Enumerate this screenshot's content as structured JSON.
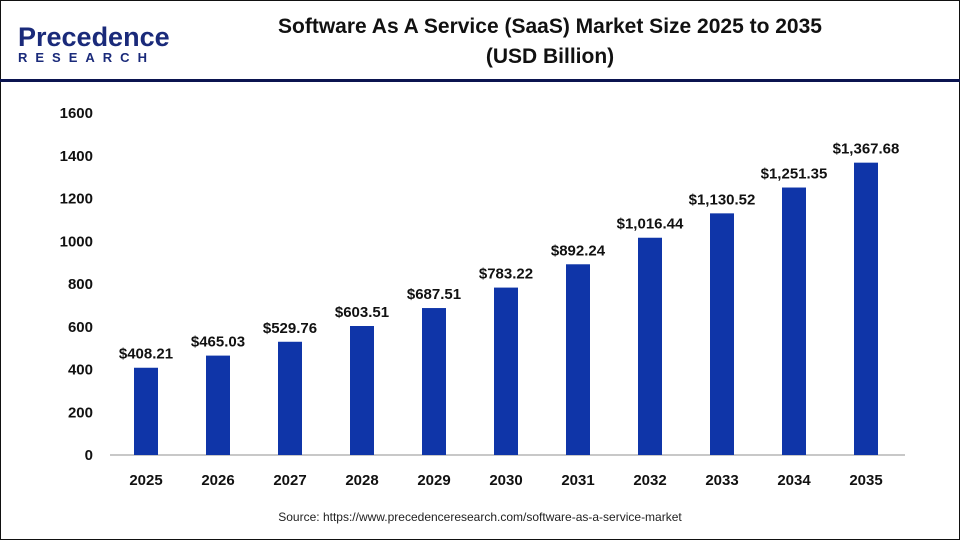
{
  "logo": {
    "line1": "Precedence",
    "line2": "RESEARCH"
  },
  "title": "Software As A Service (SaaS) Market Size 2025 to 2035",
  "subtitle": "(USD Billion)",
  "source": "Source: https://www.precedenceresearch.com/software-as-a-service-market",
  "chart_data": {
    "type": "bar",
    "title": "Software As A Service (SaaS) Market Size 2025 to 2035 (USD Billion)",
    "categories": [
      "2025",
      "2026",
      "2027",
      "2028",
      "2029",
      "2030",
      "2031",
      "2032",
      "2033",
      "2034",
      "2035"
    ],
    "values": [
      408.21,
      465.03,
      529.76,
      603.51,
      687.51,
      783.22,
      892.24,
      1016.44,
      1130.52,
      1251.35,
      1367.68
    ],
    "data_labels": [
      "$408.21",
      "$465.03",
      "$529.76",
      "$603.51",
      "$687.51",
      "$783.22",
      "$892.24",
      "$1,016.44",
      "$1,130.52",
      "$1,251.35",
      "$1,367.68"
    ],
    "yticks": [
      "0",
      "200",
      "400",
      "600",
      "800",
      "1000",
      "1200",
      "1400",
      "1600"
    ],
    "ylim": [
      0,
      1600
    ],
    "grid": false,
    "bar_color": "#0f35a8"
  }
}
